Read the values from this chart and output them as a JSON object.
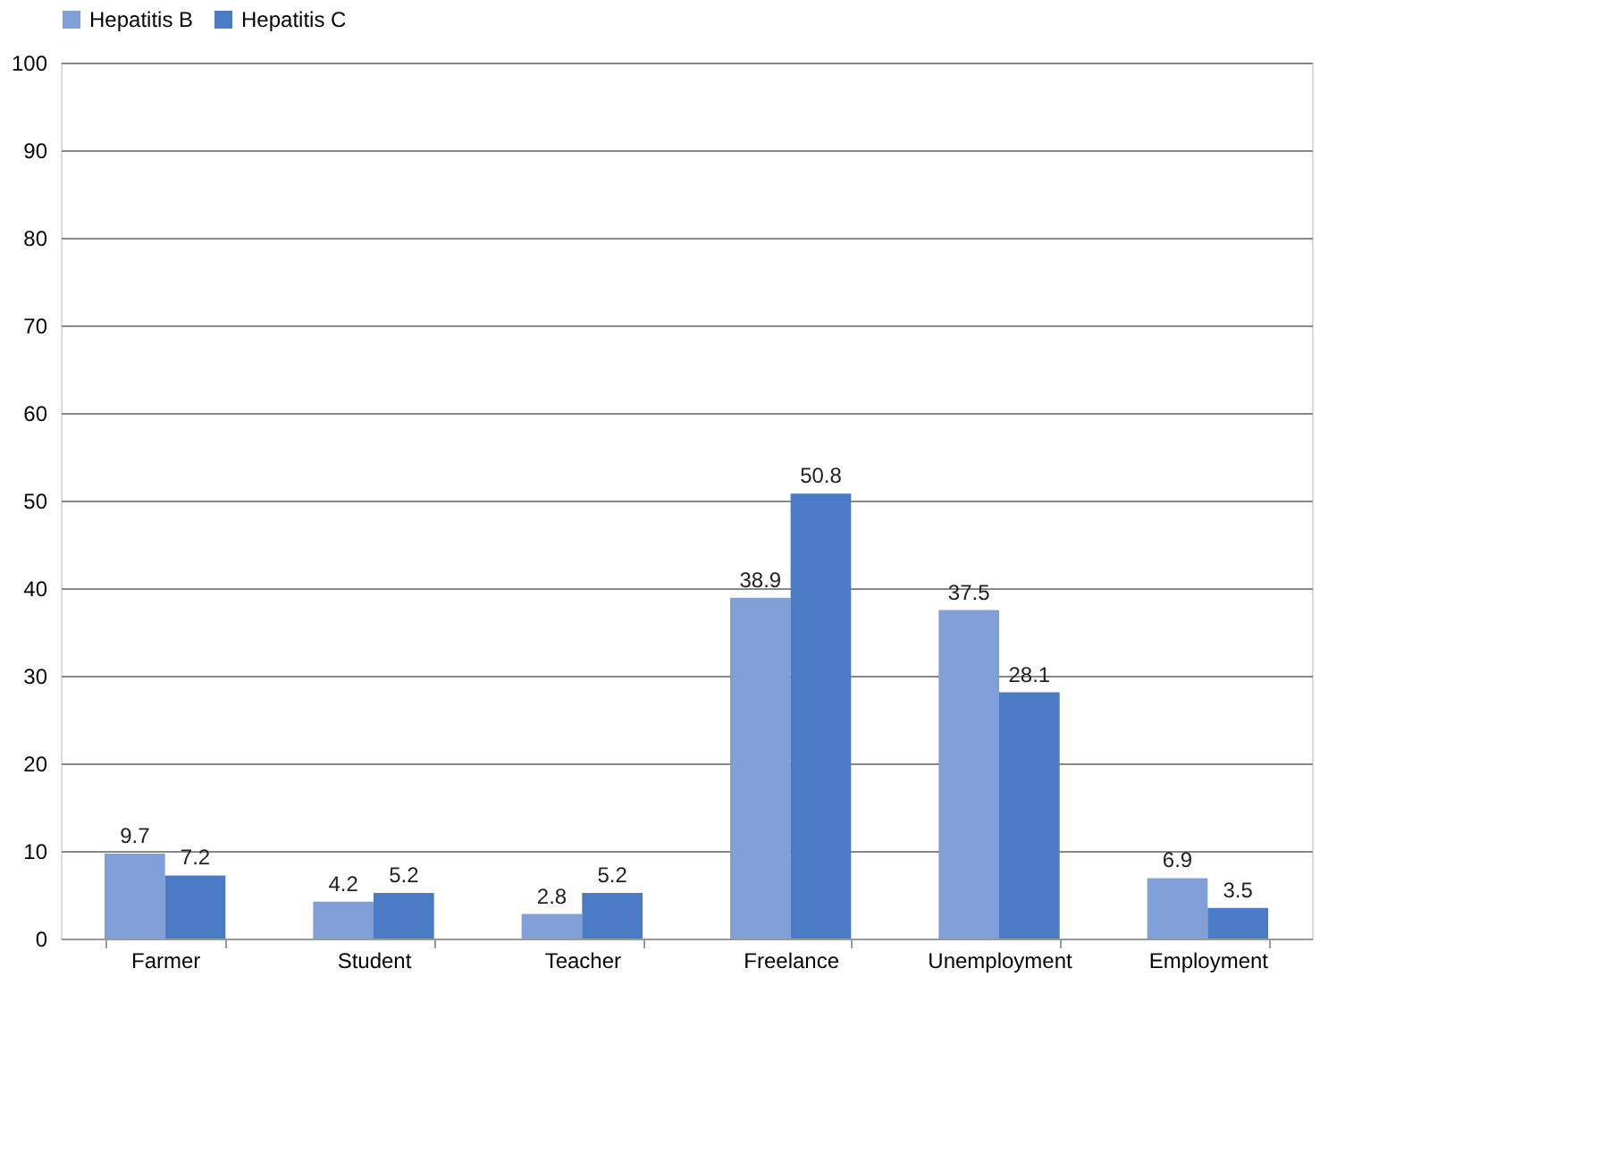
{
  "chart_data": {
    "type": "bar",
    "categories": [
      "Farmer",
      "Student",
      "Teacher",
      "Freelance",
      "Unemployment",
      "Employment"
    ],
    "series": [
      {
        "name": "Hepatitis B",
        "color": "#7f9fd6",
        "values": [
          9.7,
          4.2,
          2.8,
          38.9,
          37.5,
          6.9
        ]
      },
      {
        "name": "Hepatitis C",
        "color": "#4a7bc4",
        "values": [
          7.2,
          5.2,
          5.2,
          50.8,
          28.1,
          3.5
        ]
      }
    ],
    "ylim": [
      0,
      100
    ],
    "yticks": [
      0,
      10,
      20,
      30,
      40,
      50,
      60,
      70,
      80,
      90,
      100
    ],
    "grid": "y",
    "legend": "top",
    "data_labels": true
  }
}
